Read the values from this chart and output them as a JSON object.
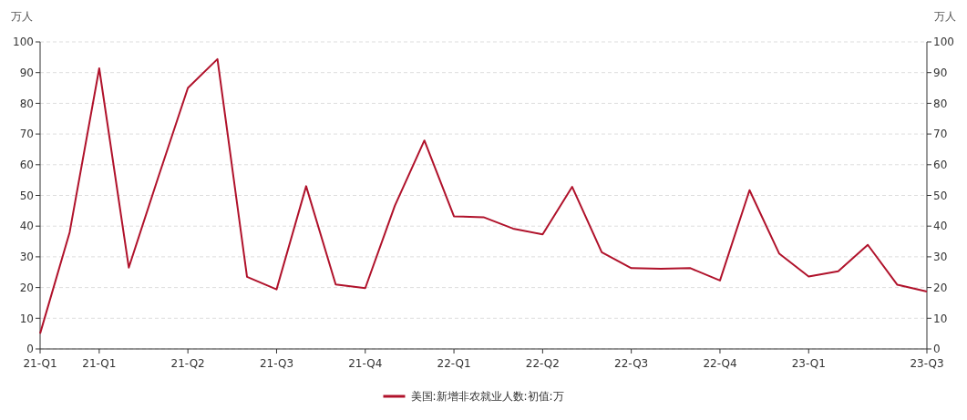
{
  "chart_data": {
    "type": "line",
    "ylabel": "万人",
    "y2label": "万人",
    "categories": [
      "21-Q1",
      null,
      "21-Q1",
      null,
      null,
      "21-Q2",
      null,
      null,
      "21-Q3",
      null,
      null,
      "21-Q4",
      null,
      null,
      "22-Q1",
      null,
      null,
      "22-Q2",
      null,
      null,
      "22-Q3",
      null,
      null,
      "22-Q4",
      null,
      null,
      "23-Q1",
      null,
      null,
      null,
      "23-Q3"
    ],
    "series": [
      {
        "name": "美国:新增非农就业人数:初值:万",
        "color": "#b0122b",
        "values": [
          5,
          38,
          91.4,
          26.5,
          56,
          85,
          94.4,
          23.5,
          19.4,
          53,
          21,
          19.8,
          46.6,
          67.9,
          43.2,
          42.9,
          39.2,
          37.3,
          52.8,
          31.5,
          26.3,
          26.1,
          26.3,
          22.3,
          51.7,
          31.1,
          23.6,
          25.3,
          33.9,
          20.9,
          18.7
        ]
      }
    ],
    "ylim": [
      0,
      100
    ],
    "yticks": [
      0,
      10,
      20,
      30,
      40,
      50,
      60,
      70,
      80,
      90,
      100
    ],
    "y2lim": [
      0,
      100
    ],
    "y2ticks": [
      0,
      10,
      20,
      30,
      40,
      50,
      60,
      70,
      80,
      90,
      100
    ],
    "grid": "y",
    "legend": "bottom",
    "marker": "none",
    "line_style": "solid"
  }
}
